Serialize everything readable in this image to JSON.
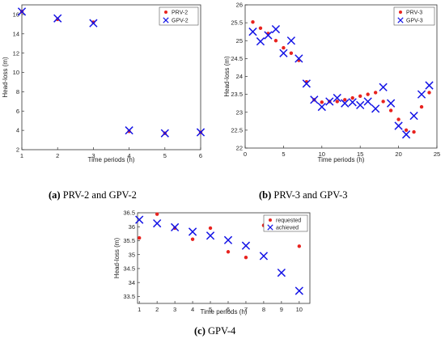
{
  "captions": [
    {
      "letter": "(a)",
      "text": " PRV-2 and GPV-2"
    },
    {
      "letter": "(b)",
      "text": " PRV-3 and GPV-3"
    },
    {
      "letter": "(c)",
      "text": " GPV-4"
    }
  ],
  "chart_data": [
    {
      "type": "scatter",
      "xlabel": "Time periods (h)",
      "ylabel": "Head-loss (m)",
      "xlim": [
        1,
        6
      ],
      "ylim": [
        2,
        17
      ],
      "xticks": [
        1,
        2,
        3,
        4,
        5,
        6
      ],
      "yticks": [
        2,
        4,
        6,
        8,
        10,
        12,
        14,
        16
      ],
      "grid": false,
      "legend_position": "top-right",
      "series": [
        {
          "name": "PRV-2",
          "marker": "dot",
          "color": "#e8231f",
          "x": [
            1,
            2,
            3,
            4,
            5,
            6
          ],
          "y": [
            16.3,
            15.5,
            15.2,
            3.9,
            3.7,
            3.8
          ]
        },
        {
          "name": "GPV-2",
          "marker": "x",
          "color": "#1414e6",
          "x": [
            1,
            2,
            3,
            4,
            5,
            6
          ],
          "y": [
            16.3,
            15.6,
            15.1,
            4.0,
            3.7,
            3.8
          ]
        }
      ]
    },
    {
      "type": "scatter",
      "xlabel": "Time periods (h)",
      "ylabel": "Head-loss (m)",
      "xlim": [
        0,
        25
      ],
      "ylim": [
        22,
        26
      ],
      "xticks": [
        0,
        5,
        10,
        15,
        20,
        25
      ],
      "yticks": [
        22,
        22.5,
        23,
        23.5,
        24,
        24.5,
        25,
        25.5,
        26
      ],
      "grid": false,
      "legend_position": "top-right",
      "series": [
        {
          "name": "PRV-3",
          "marker": "dot",
          "color": "#e8231f",
          "x": [
            1,
            2,
            3,
            4,
            5,
            6,
            7,
            8,
            9,
            10,
            11,
            12,
            13,
            14,
            15,
            16,
            17,
            18,
            19,
            20,
            21,
            22,
            23,
            24
          ],
          "y": [
            25.52,
            25.35,
            25.2,
            25.0,
            24.8,
            24.65,
            24.45,
            23.85,
            23.35,
            23.28,
            23.3,
            23.3,
            23.35,
            23.4,
            23.45,
            23.5,
            23.55,
            23.3,
            23.05,
            22.8,
            22.5,
            22.45,
            23.15,
            23.55
          ]
        },
        {
          "name": "GPV-3",
          "marker": "x",
          "color": "#1414e6",
          "x": [
            1,
            2,
            3,
            4,
            5,
            6,
            7,
            8,
            9,
            10,
            11,
            12,
            13,
            14,
            15,
            16,
            17,
            18,
            19,
            20,
            21,
            22,
            23,
            24
          ],
          "y": [
            25.25,
            24.98,
            25.15,
            25.32,
            24.65,
            25.0,
            24.5,
            23.8,
            23.35,
            23.15,
            23.3,
            23.4,
            23.25,
            23.28,
            23.2,
            23.3,
            23.1,
            23.7,
            23.25,
            22.62,
            22.38,
            22.9,
            23.5,
            23.75
          ]
        }
      ]
    },
    {
      "type": "scatter",
      "xlabel": "Time periods (h)",
      "ylabel": "Head-loss (m)",
      "xlim": [
        0.9,
        10.6
      ],
      "ylim": [
        33.25,
        36.5
      ],
      "xticks": [
        1,
        2,
        3,
        4,
        5,
        6,
        7,
        8,
        9,
        10
      ],
      "yticks": [
        33.5,
        34,
        34.5,
        35,
        35.5,
        36,
        36.5
      ],
      "grid": false,
      "legend_position": "top-right",
      "series": [
        {
          "name": "requested",
          "marker": "dot",
          "color": "#e8231f",
          "x": [
            1,
            2,
            3,
            4,
            5,
            6,
            7,
            8,
            9,
            10
          ],
          "y": [
            35.6,
            36.45,
            35.95,
            35.55,
            35.95,
            35.1,
            34.9,
            36.05,
            35.98,
            35.3
          ]
        },
        {
          "name": "achieved",
          "marker": "x",
          "color": "#1414e6",
          "x": [
            1,
            2,
            3,
            4,
            5,
            6,
            7,
            8,
            9,
            10
          ],
          "y": [
            36.25,
            36.12,
            35.98,
            35.82,
            35.68,
            35.52,
            35.32,
            34.95,
            34.35,
            33.7
          ]
        }
      ]
    }
  ]
}
